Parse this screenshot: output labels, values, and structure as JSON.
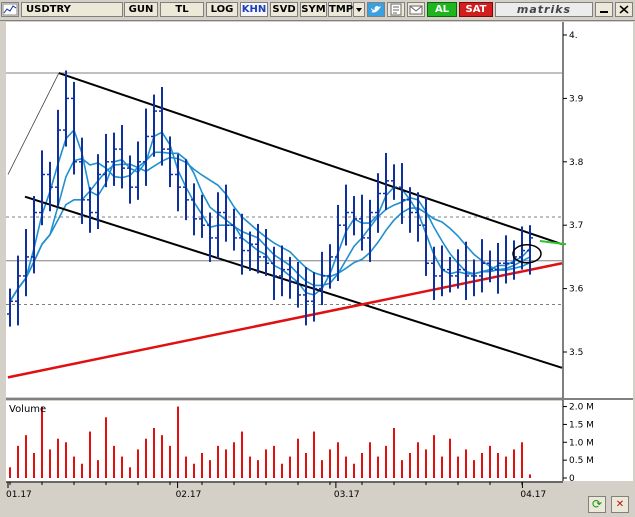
{
  "toolbar": {
    "symbol": "USDTRY",
    "buttons": [
      "GUN",
      "TL",
      "LOG",
      "KHN",
      "SVD",
      "SYM",
      "TMP"
    ],
    "active_button": "KHN",
    "buy_label": "AL",
    "sell_label": "SAT",
    "brand": "matriks",
    "icons": [
      "chart-thumbnail-icon",
      "dropdown-arrow-icon",
      "twitter-icon",
      "note-icon",
      "mail-icon",
      "minimize-icon",
      "close-icon"
    ]
  },
  "colors": {
    "background": "#ffffff",
    "price_bars": "#1030a0",
    "moving_averages": "#1f8fd0",
    "channel_lines": "#000000",
    "support_line": "#e01010",
    "volume_bars": "#e01010",
    "tangent_line": "#30c030"
  },
  "chart_data": [
    {
      "type": "ohlc",
      "title": "USDTRY",
      "y_ticks": [
        "4.",
        "3.9",
        "3.8",
        "3.7",
        "3.6",
        "3.5"
      ],
      "ylim": [
        3.45,
        4.02
      ],
      "x_ticks": [
        "01.17",
        "02.17",
        "03.17",
        "04.17"
      ],
      "x_range": [
        "2017-01-02",
        "2017-04-10"
      ],
      "reference_levels": [
        3.94,
        3.713,
        3.644,
        3.575
      ],
      "channel_upper": [
        [
          "2017-01-11",
          3.94
        ],
        [
          "2017-04-10",
          3.67
        ]
      ],
      "channel_lower": [
        [
          "2017-01-05",
          3.745
        ],
        [
          "2017-04-10",
          3.475
        ]
      ],
      "support_line": [
        [
          "2017-01-02",
          3.46
        ],
        [
          "2017-04-10",
          3.64
        ]
      ],
      "series": [
        {
          "name": "close",
          "values": [
            3.58,
            3.62,
            3.65,
            3.72,
            3.78,
            3.76,
            3.85,
            3.9,
            3.8,
            3.74,
            3.72,
            3.78,
            3.8,
            3.82,
            3.79,
            3.76,
            3.8,
            3.84,
            3.88,
            3.82,
            3.78,
            3.76,
            3.74,
            3.71,
            3.7,
            3.68,
            3.72,
            3.7,
            3.68,
            3.66,
            3.67,
            3.65,
            3.64,
            3.62,
            3.63,
            3.61,
            3.59,
            3.58,
            3.6,
            3.62,
            3.65,
            3.7,
            3.72,
            3.71,
            3.68,
            3.72,
            3.75,
            3.77,
            3.76,
            3.74,
            3.72,
            3.7,
            3.64,
            3.62,
            3.63,
            3.62,
            3.63,
            3.62,
            3.62,
            3.64,
            3.63,
            3.64,
            3.64,
            3.65,
            3.66,
            3.68
          ]
        }
      ]
    },
    {
      "type": "bar",
      "title": "Volume",
      "y_ticks": [
        "2.0 M",
        "1.5 M",
        "1.0 M",
        "0.5 M",
        "0"
      ],
      "ylim": [
        0,
        2.1
      ],
      "values": [
        0.3,
        0.9,
        1.2,
        0.7,
        2.0,
        0.8,
        1.1,
        1.0,
        0.6,
        0.4,
        1.3,
        0.5,
        1.7,
        0.9,
        0.6,
        0.3,
        0.8,
        1.1,
        1.4,
        1.2,
        0.9,
        2.0,
        0.6,
        0.4,
        0.7,
        0.5,
        0.9,
        0.8,
        1.0,
        1.3,
        0.6,
        0.5,
        0.8,
        0.9,
        0.4,
        0.6,
        1.1,
        0.7,
        1.3,
        0.5,
        0.8,
        1.0,
        0.6,
        0.4,
        0.7,
        1.0,
        0.6,
        0.9,
        1.4,
        0.5,
        0.7,
        1.0,
        0.8,
        1.2,
        0.6,
        1.1,
        0.6,
        0.8,
        0.5,
        0.7,
        0.9,
        0.7,
        0.6,
        0.8,
        1.0,
        0.1
      ]
    }
  ]
}
